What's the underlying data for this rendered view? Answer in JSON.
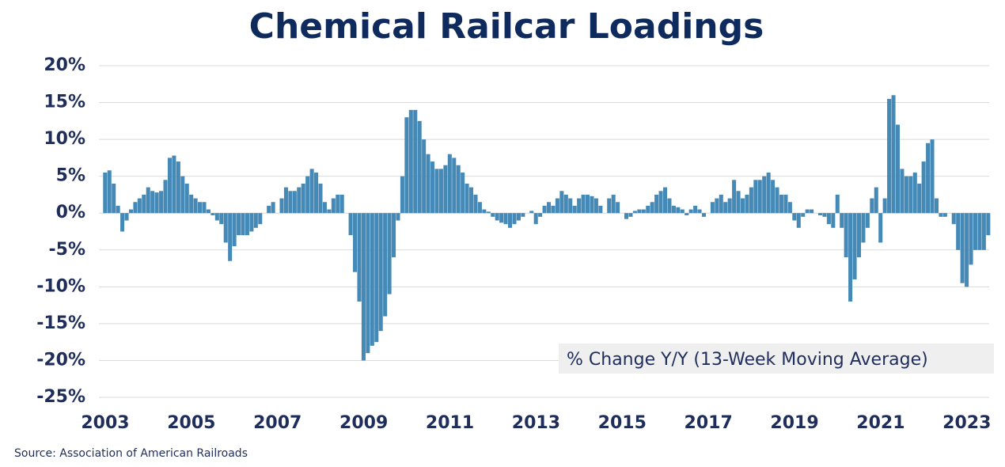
{
  "chart_data": {
    "type": "bar",
    "title": "Chemical Railcar Loadings",
    "annotation": "% Change Y/Y (13-Week Moving Average)",
    "source": "Source:  Association of American Railroads",
    "color": "#4589b7",
    "grid": true,
    "xlim": [
      2003,
      2023.5
    ],
    "xticks": [
      2003,
      2005,
      2007,
      2009,
      2011,
      2013,
      2015,
      2017,
      2019,
      2021,
      2023
    ],
    "ylim": [
      -25,
      20
    ],
    "yticks": [
      {
        "value": 20,
        "label": "20%"
      },
      {
        "value": 15,
        "label": "15%"
      },
      {
        "value": 10,
        "label": "10%"
      },
      {
        "value": 5,
        "label": "5%"
      },
      {
        "value": 0,
        "label": "0%"
      },
      {
        "value": -5,
        "label": "-5%"
      },
      {
        "value": -10,
        "label": "-10%"
      },
      {
        "value": -15,
        "label": "-15%"
      },
      {
        "value": -20,
        "label": "-20%"
      },
      {
        "value": -25,
        "label": "-25%"
      }
    ],
    "x": [
      2003.0,
      2003.1,
      2003.2,
      2003.3,
      2003.4,
      2003.5,
      2003.6,
      2003.7,
      2003.8,
      2003.9,
      2004.0,
      2004.1,
      2004.2,
      2004.3,
      2004.4,
      2004.5,
      2004.6,
      2004.7,
      2004.8,
      2004.9,
      2005.0,
      2005.1,
      2005.2,
      2005.3,
      2005.4,
      2005.5,
      2005.6,
      2005.7,
      2005.8,
      2005.9,
      2006.0,
      2006.1,
      2006.2,
      2006.3,
      2006.4,
      2006.5,
      2006.6,
      2006.7,
      2006.8,
      2006.9,
      2007.0,
      2007.1,
      2007.2,
      2007.3,
      2007.4,
      2007.5,
      2007.6,
      2007.7,
      2007.8,
      2007.9,
      2008.0,
      2008.1,
      2008.2,
      2008.3,
      2008.4,
      2008.5,
      2008.6,
      2008.7,
      2008.8,
      2008.9,
      2009.0,
      2009.1,
      2009.2,
      2009.3,
      2009.4,
      2009.5,
      2009.6,
      2009.7,
      2009.8,
      2009.9,
      2010.0,
      2010.1,
      2010.2,
      2010.3,
      2010.4,
      2010.5,
      2010.6,
      2010.7,
      2010.8,
      2010.9,
      2011.0,
      2011.1,
      2011.2,
      2011.3,
      2011.4,
      2011.5,
      2011.6,
      2011.7,
      2011.8,
      2011.9,
      2012.0,
      2012.1,
      2012.2,
      2012.3,
      2012.4,
      2012.5,
      2012.6,
      2012.7,
      2012.8,
      2012.9,
      2013.0,
      2013.1,
      2013.2,
      2013.3,
      2013.4,
      2013.5,
      2013.6,
      2013.7,
      2013.8,
      2013.9,
      2014.0,
      2014.1,
      2014.2,
      2014.3,
      2014.4,
      2014.5,
      2014.6,
      2014.7,
      2014.8,
      2014.9,
      2015.0,
      2015.1,
      2015.2,
      2015.3,
      2015.4,
      2015.5,
      2015.6,
      2015.7,
      2015.8,
      2015.9,
      2016.0,
      2016.1,
      2016.2,
      2016.3,
      2016.4,
      2016.5,
      2016.6,
      2016.7,
      2016.8,
      2016.9,
      2017.0,
      2017.1,
      2017.2,
      2017.3,
      2017.4,
      2017.5,
      2017.6,
      2017.7,
      2017.8,
      2017.9,
      2018.0,
      2018.1,
      2018.2,
      2018.3,
      2018.4,
      2018.5,
      2018.6,
      2018.7,
      2018.8,
      2018.9,
      2019.0,
      2019.1,
      2019.2,
      2019.3,
      2019.4,
      2019.5,
      2019.6,
      2019.7,
      2019.8,
      2019.9,
      2020.0,
      2020.1,
      2020.2,
      2020.3,
      2020.4,
      2020.5,
      2020.6,
      2020.7,
      2020.8,
      2020.9,
      2021.0,
      2021.1,
      2021.2,
      2021.3,
      2021.4,
      2021.5,
      2021.6,
      2021.7,
      2021.8,
      2021.9,
      2022.0,
      2022.1,
      2022.2,
      2022.3,
      2022.4,
      2022.5,
      2022.6,
      2022.7,
      2022.8,
      2022.9,
      2023.0,
      2023.1,
      2023.2,
      2023.3,
      2023.4,
      2023.5
    ],
    "values": [
      5.5,
      5.8,
      4,
      1,
      -2.5,
      -1,
      0.5,
      1.5,
      2,
      2.5,
      3.5,
      3,
      2.8,
      3,
      4.5,
      7.5,
      7.8,
      7,
      5,
      4,
      2.5,
      2,
      1.5,
      1.5,
      0.5,
      -0.3,
      -1,
      -1.5,
      -4,
      -6.5,
      -4.5,
      -3,
      -3,
      -3,
      -2.5,
      -2,
      -1.5,
      0,
      1,
      1.5,
      0,
      2,
      3.5,
      3,
      3,
      3.5,
      4,
      5,
      6,
      5.5,
      4,
      1.5,
      0.5,
      2,
      2.5,
      2.5,
      0,
      -3,
      -8,
      -12,
      -20,
      -19,
      -18,
      -17.5,
      -16,
      -14,
      -11,
      -6,
      -1,
      5,
      13,
      14,
      14,
      12.5,
      10,
      8,
      7,
      6,
      6,
      6.5,
      8,
      7.5,
      6.5,
      5.5,
      4,
      3.5,
      2.5,
      1.5,
      0.5,
      0.2,
      -0.5,
      -1,
      -1.3,
      -1.5,
      -2,
      -1.5,
      -1,
      -0.5,
      0,
      0.3,
      -1.5,
      -0.5,
      1,
      1.5,
      1,
      2,
      3,
      2.5,
      2,
      1,
      2,
      2.5,
      2.5,
      2.3,
      2,
      1,
      0,
      2,
      2.5,
      1.5,
      0,
      -0.8,
      -0.5,
      0.3,
      0.5,
      0.5,
      1,
      1.5,
      2.5,
      3,
      3.5,
      2,
      1,
      0.8,
      0.5,
      -0.3,
      0.5,
      1,
      0.5,
      -0.5,
      0,
      1.5,
      2,
      2.5,
      1.5,
      2,
      4.5,
      3,
      2,
      2.5,
      3.5,
      4.5,
      4.5,
      5,
      5.5,
      4.5,
      3.5,
      2.5,
      2.5,
      1.5,
      -1,
      -2,
      -0.5,
      0.5,
      0.5,
      0,
      -0.3,
      -0.5,
      -1.5,
      -2,
      2.5,
      -2,
      -6,
      -12,
      -9,
      -6,
      -4,
      -2,
      2,
      3.5,
      -4,
      2,
      15.5,
      16,
      12,
      6,
      5,
      5,
      5.5,
      4,
      7,
      9.5,
      10,
      2,
      -0.5,
      -0.5,
      0,
      -1.5,
      -5,
      -9.5,
      -10,
      -7,
      -5,
      -5,
      -5,
      -3
    ]
  }
}
